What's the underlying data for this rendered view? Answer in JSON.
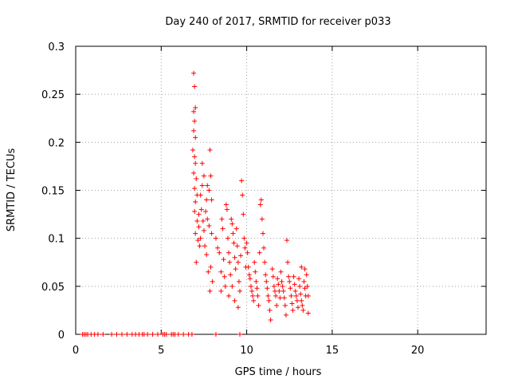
{
  "chart_data": {
    "type": "scatter",
    "title": "Day 240 of 2017, SRMTID for receiver p033",
    "xlabel": "GPS time / hours",
    "ylabel": "SRMTID / TECUs",
    "xlim": [
      0,
      24
    ],
    "ylim": [
      0,
      0.3
    ],
    "x_ticks": [
      0,
      5,
      10,
      15,
      20
    ],
    "x_tick_labels": [
      "0",
      "5",
      "10",
      "15",
      "20"
    ],
    "y_ticks": [
      0,
      0.05,
      0.1,
      0.15,
      0.2,
      0.25,
      0.3
    ],
    "y_tick_labels": [
      "0",
      "0.05",
      "0.1",
      "0.15",
      "0.2",
      "0.25",
      "0.3"
    ],
    "grid": true,
    "marker": "+",
    "series": [
      {
        "name": "SRMTID",
        "color": "#ff0000",
        "points": [
          [
            0.4,
            0
          ],
          [
            0.5,
            0
          ],
          [
            0.6,
            0
          ],
          [
            0.7,
            0
          ],
          [
            0.9,
            0
          ],
          [
            1.1,
            0
          ],
          [
            1.3,
            0
          ],
          [
            1.6,
            0
          ],
          [
            2.1,
            0
          ],
          [
            2.4,
            0
          ],
          [
            2.7,
            0
          ],
          [
            3.0,
            0
          ],
          [
            3.3,
            0
          ],
          [
            3.5,
            0
          ],
          [
            3.7,
            0
          ],
          [
            3.9,
            0
          ],
          [
            4.0,
            0
          ],
          [
            4.2,
            0
          ],
          [
            4.5,
            0
          ],
          [
            4.8,
            0
          ],
          [
            5.1,
            0
          ],
          [
            5.2,
            0
          ],
          [
            5.3,
            0
          ],
          [
            5.6,
            0
          ],
          [
            5.7,
            0
          ],
          [
            5.8,
            0
          ],
          [
            6.0,
            0
          ],
          [
            6.3,
            0
          ],
          [
            6.6,
            0
          ],
          [
            6.8,
            0
          ],
          [
            8.2,
            0
          ],
          [
            9.6,
            0
          ],
          [
            6.9,
            0.272
          ],
          [
            6.95,
            0.258
          ],
          [
            6.9,
            0.232
          ],
          [
            7.0,
            0.236
          ],
          [
            6.95,
            0.222
          ],
          [
            6.9,
            0.212
          ],
          [
            7.0,
            0.205
          ],
          [
            6.85,
            0.192
          ],
          [
            6.95,
            0.185
          ],
          [
            7.0,
            0.178
          ],
          [
            6.9,
            0.168
          ],
          [
            7.05,
            0.162
          ],
          [
            6.95,
            0.152
          ],
          [
            7.1,
            0.145
          ],
          [
            7.0,
            0.138
          ],
          [
            6.95,
            0.128
          ],
          [
            7.1,
            0.118
          ],
          [
            7.2,
            0.112
          ],
          [
            7.0,
            0.105
          ],
          [
            7.15,
            0.098
          ],
          [
            7.25,
            0.092
          ],
          [
            7.05,
            0.075
          ],
          [
            7.3,
            0.145
          ],
          [
            7.4,
            0.155
          ],
          [
            7.35,
            0.13
          ],
          [
            7.2,
            0.125
          ],
          [
            7.45,
            0.118
          ],
          [
            7.5,
            0.108
          ],
          [
            7.3,
            0.1
          ],
          [
            7.55,
            0.092
          ],
          [
            7.6,
            0.128
          ],
          [
            7.65,
            0.14
          ],
          [
            7.7,
            0.155
          ],
          [
            7.8,
            0.15
          ],
          [
            7.85,
            0.192
          ],
          [
            7.9,
            0.165
          ],
          [
            7.95,
            0.14
          ],
          [
            7.7,
            0.12
          ],
          [
            7.8,
            0.113
          ],
          [
            7.65,
            0.083
          ],
          [
            7.9,
            0.07
          ],
          [
            7.75,
            0.065
          ],
          [
            7.85,
            0.045
          ],
          [
            8.0,
            0.055
          ],
          [
            7.95,
            0.105
          ],
          [
            7.5,
            0.165
          ],
          [
            7.4,
            0.178
          ],
          [
            8.2,
            0.1
          ],
          [
            8.3,
            0.09
          ],
          [
            8.4,
            0.085
          ],
          [
            8.5,
            0.065
          ],
          [
            8.55,
            0.12
          ],
          [
            8.6,
            0.11
          ],
          [
            8.65,
            0.078
          ],
          [
            8.7,
            0.06
          ],
          [
            8.75,
            0.05
          ],
          [
            8.8,
            0.135
          ],
          [
            8.85,
            0.13
          ],
          [
            8.9,
            0.1
          ],
          [
            8.95,
            0.085
          ],
          [
            9.0,
            0.075
          ],
          [
            9.05,
            0.062
          ],
          [
            9.1,
            0.12
          ],
          [
            9.15,
            0.115
          ],
          [
            9.2,
            0.105
          ],
          [
            9.25,
            0.095
          ],
          [
            9.3,
            0.08
          ],
          [
            9.35,
            0.068
          ],
          [
            9.4,
            0.11
          ],
          [
            9.45,
            0.092
          ],
          [
            9.5,
            0.075
          ],
          [
            9.55,
            0.055
          ],
          [
            9.6,
            0.045
          ],
          [
            9.65,
            0.082
          ],
          [
            9.7,
            0.16
          ],
          [
            9.75,
            0.145
          ],
          [
            9.8,
            0.125
          ],
          [
            9.85,
            0.1
          ],
          [
            9.9,
            0.09
          ],
          [
            9.95,
            0.07
          ],
          [
            9.3,
            0.035
          ],
          [
            9.5,
            0.028
          ],
          [
            8.5,
            0.045
          ],
          [
            8.95,
            0.04
          ],
          [
            9.15,
            0.05
          ],
          [
            10.0,
            0.095
          ],
          [
            10.05,
            0.085
          ],
          [
            10.1,
            0.07
          ],
          [
            10.15,
            0.062
          ],
          [
            10.2,
            0.058
          ],
          [
            10.25,
            0.05
          ],
          [
            10.3,
            0.045
          ],
          [
            10.35,
            0.04
          ],
          [
            10.4,
            0.035
          ],
          [
            10.45,
            0.075
          ],
          [
            10.5,
            0.065
          ],
          [
            10.55,
            0.055
          ],
          [
            10.6,
            0.048
          ],
          [
            10.65,
            0.04
          ],
          [
            10.7,
            0.03
          ],
          [
            10.8,
            0.135
          ],
          [
            10.85,
            0.14
          ],
          [
            10.9,
            0.12
          ],
          [
            10.95,
            0.105
          ],
          [
            11.0,
            0.09
          ],
          [
            11.05,
            0.075
          ],
          [
            11.1,
            0.062
          ],
          [
            11.15,
            0.055
          ],
          [
            11.2,
            0.048
          ],
          [
            11.25,
            0.04
          ],
          [
            11.3,
            0.035
          ],
          [
            11.35,
            0.025
          ],
          [
            11.4,
            0.015
          ],
          [
            10.75,
            0.085
          ],
          [
            11.5,
            0.068
          ],
          [
            11.55,
            0.06
          ],
          [
            11.6,
            0.05
          ],
          [
            11.65,
            0.045
          ],
          [
            11.7,
            0.04
          ],
          [
            11.75,
            0.03
          ],
          [
            11.8,
            0.058
          ],
          [
            11.85,
            0.052
          ],
          [
            11.9,
            0.045
          ],
          [
            11.95,
            0.038
          ],
          [
            12.0,
            0.065
          ],
          [
            12.05,
            0.055
          ],
          [
            12.1,
            0.05
          ],
          [
            12.15,
            0.045
          ],
          [
            12.2,
            0.038
          ],
          [
            12.25,
            0.03
          ],
          [
            12.3,
            0.02
          ],
          [
            12.35,
            0.098
          ],
          [
            12.4,
            0.075
          ],
          [
            12.45,
            0.06
          ],
          [
            12.5,
            0.055
          ],
          [
            12.55,
            0.048
          ],
          [
            12.6,
            0.04
          ],
          [
            12.65,
            0.032
          ],
          [
            12.7,
            0.025
          ],
          [
            12.75,
            0.06
          ],
          [
            12.8,
            0.052
          ],
          [
            12.85,
            0.045
          ],
          [
            12.9,
            0.04
          ],
          [
            12.95,
            0.035
          ],
          [
            13.0,
            0.028
          ],
          [
            13.05,
            0.058
          ],
          [
            13.1,
            0.05
          ],
          [
            13.15,
            0.042
          ],
          [
            13.2,
            0.035
          ],
          [
            13.25,
            0.03
          ],
          [
            13.3,
            0.025
          ],
          [
            13.35,
            0.055
          ],
          [
            13.4,
            0.048
          ],
          [
            13.45,
            0.04
          ],
          [
            13.5,
            0.062
          ],
          [
            13.55,
            0.05
          ],
          [
            13.6,
            0.04
          ],
          [
            13.6,
            0.022
          ],
          [
            13.4,
            0.068
          ],
          [
            13.2,
            0.07
          ]
        ]
      }
    ]
  }
}
